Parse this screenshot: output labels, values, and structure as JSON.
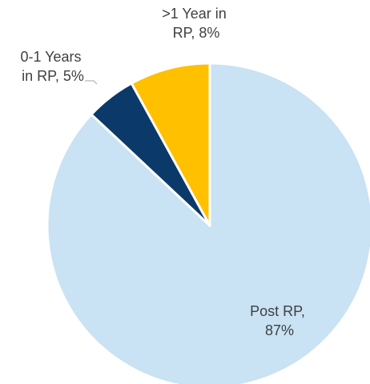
{
  "chart_data": {
    "type": "pie",
    "labels": [
      "Post RP, 87%",
      "0-1 Years in RP, 5%",
      ">1 Year in RP, 8%"
    ],
    "values": [
      87,
      5,
      8
    ],
    "colors": [
      "#c9e2f4",
      "#0b3a6a",
      "#ffc000"
    ]
  }
}
